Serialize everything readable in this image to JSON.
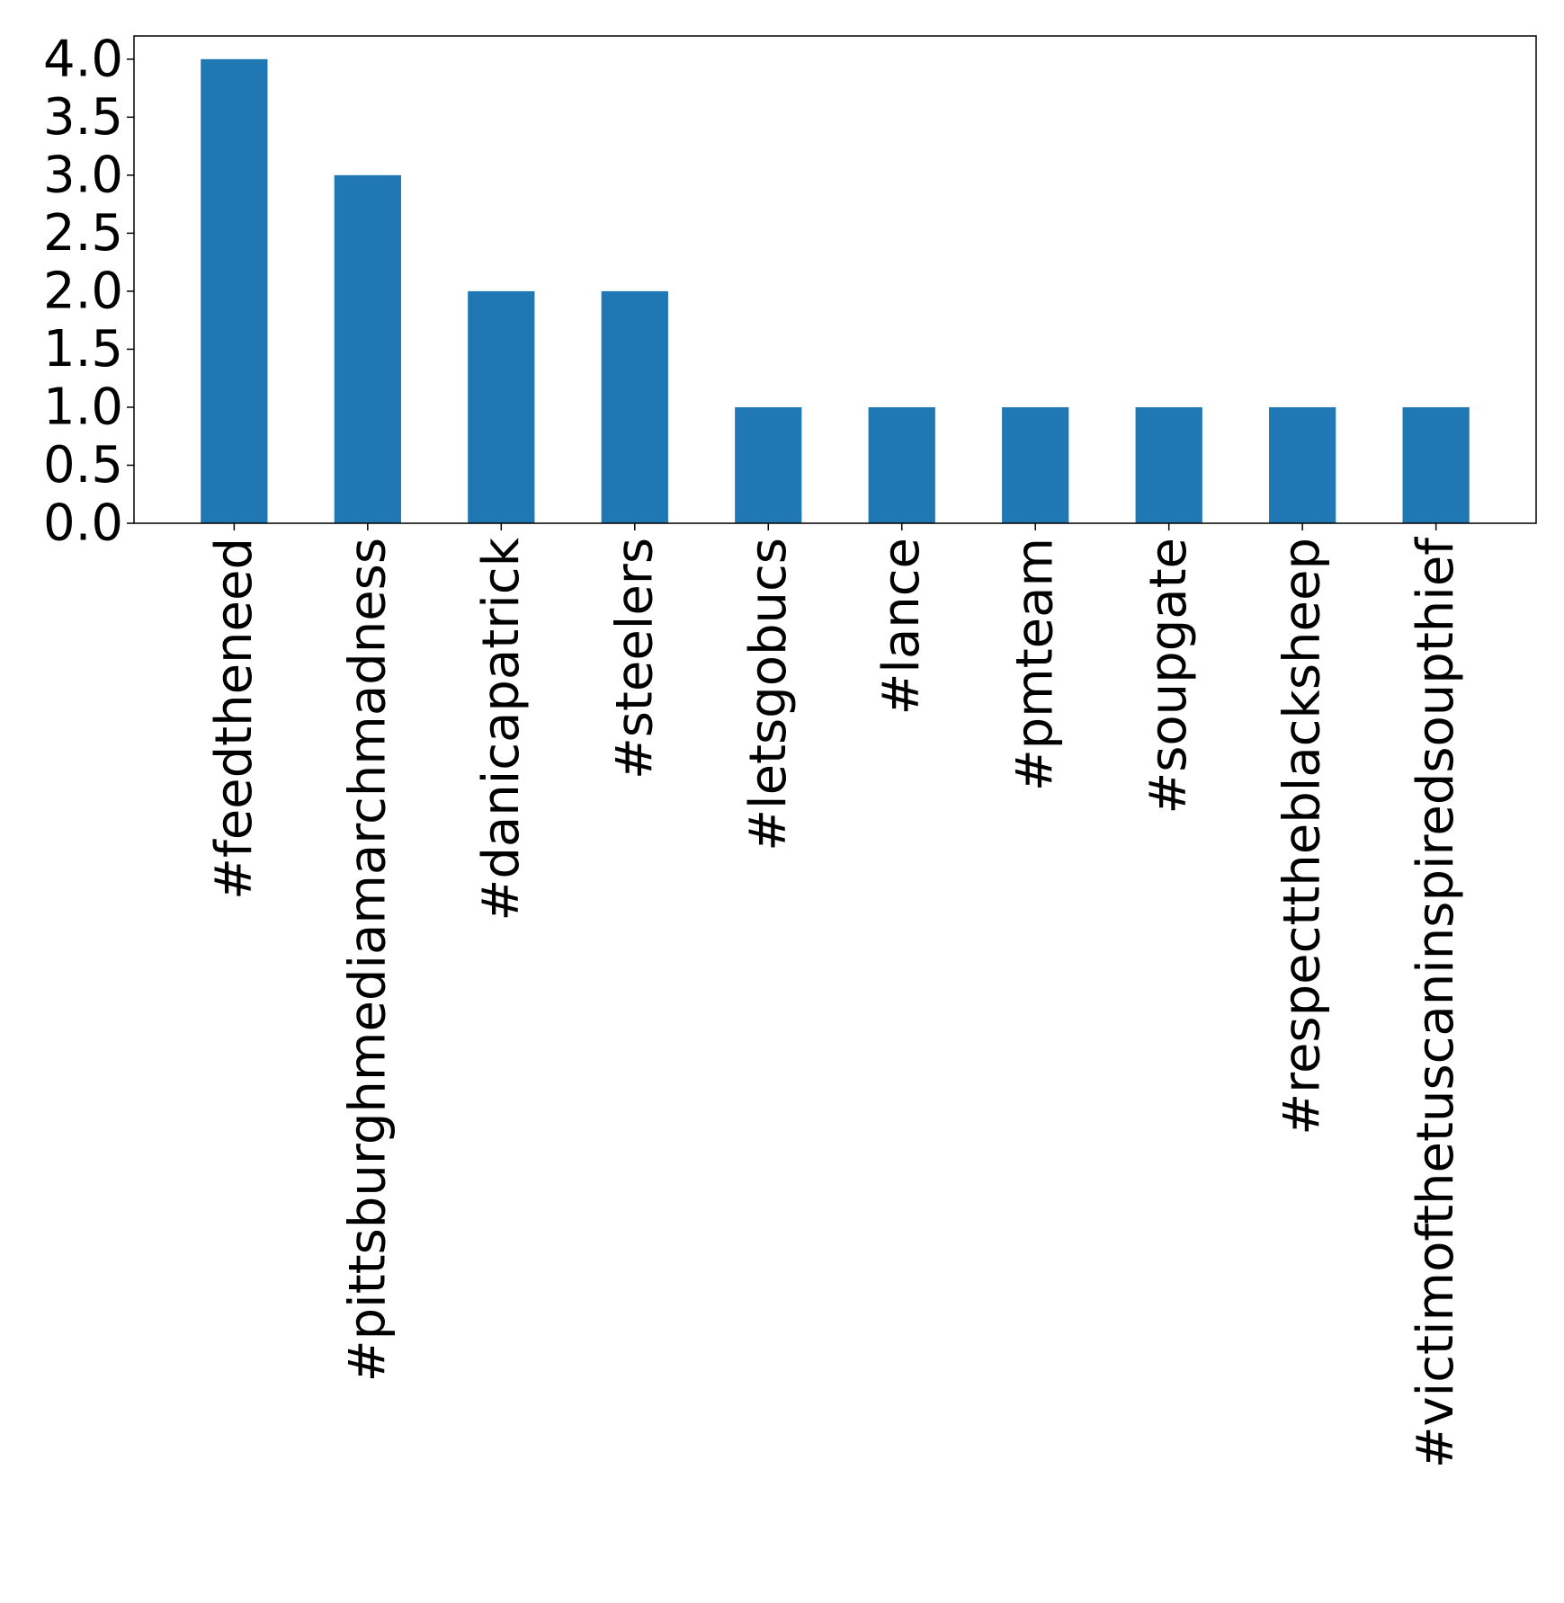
{
  "chart_data": {
    "type": "bar",
    "title": "",
    "xlabel": "",
    "ylabel": "",
    "categories": [
      "#feedtheneed",
      "#pittsburghmediamarchmadness",
      "#danicapatrick",
      "#steelers",
      "#letsgobucs",
      "#lance",
      "#pmteam",
      "#soupgate",
      "#respecttheblacksheep",
      "#victimofthetuscaninspiredsoupthief"
    ],
    "values": [
      4,
      3,
      2,
      2,
      1,
      1,
      1,
      1,
      1,
      1
    ],
    "ylim": [
      0,
      4.2
    ],
    "yticks": [
      "0.0",
      "0.5",
      "1.0",
      "1.5",
      "2.0",
      "2.5",
      "3.0",
      "3.5",
      "4.0"
    ],
    "grid": false,
    "legend": "none",
    "bar_color": "#1f77b4"
  }
}
